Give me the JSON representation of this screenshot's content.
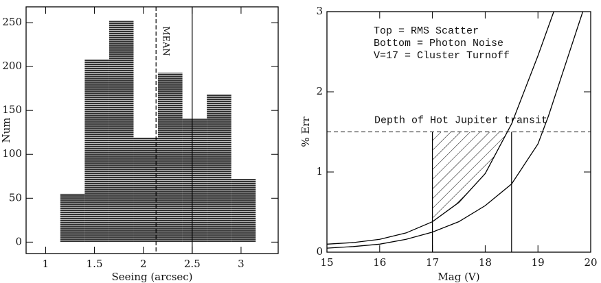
{
  "chart_data": [
    {
      "type": "histogram",
      "xlabel": "Seeing (arcsec)",
      "ylabel": "Num",
      "bins": [
        1.15,
        1.4,
        1.65,
        1.9,
        2.15,
        2.4,
        2.65,
        2.9,
        3.15
      ],
      "values": [
        55,
        208,
        252,
        119,
        193,
        141,
        168,
        72
      ],
      "color": "#444444",
      "xlim": [
        0.8,
        3.38
      ],
      "ylim": [
        -13,
        268
      ],
      "xticks": [
        1,
        1.5,
        2,
        2.5,
        3
      ],
      "yticks": [
        0,
        50,
        100,
        150,
        200,
        250
      ],
      "vlines": [
        {
          "x": 2.13,
          "style": "dashed"
        },
        {
          "x": 2.5,
          "style": "solid"
        }
      ],
      "annotation": "MEAN"
    },
    {
      "type": "line",
      "xlabel": "Mag (V)",
      "ylabel": "% Err",
      "series": [
        {
          "name": "Top = RMS Scatter",
          "color": "#000000",
          "x": [
            15,
            15.5,
            16,
            16.5,
            17,
            17.5,
            18,
            18.5,
            19,
            19.3
          ],
          "values": [
            0.1,
            0.12,
            0.16,
            0.24,
            0.38,
            0.62,
            0.98,
            1.6,
            2.45,
            3.0
          ]
        },
        {
          "name": "Bottom = Photon Noise",
          "color": "#000000",
          "x": [
            15,
            15.5,
            16,
            16.5,
            17,
            17.5,
            18,
            18.5,
            19,
            19.2,
            19.5,
            19.85
          ],
          "values": [
            0.05,
            0.07,
            0.1,
            0.16,
            0.25,
            0.38,
            0.58,
            0.85,
            1.35,
            1.7,
            2.3,
            3.0
          ]
        }
      ],
      "note": "V=17 = Cluster Turnoff",
      "hline": {
        "y": 1.5,
        "label": "Depth of Hot Jupiter transit"
      },
      "vlines": [
        17,
        18.5
      ],
      "xlim": [
        15,
        20
      ],
      "ylim": [
        0,
        3
      ],
      "xticks": [
        15,
        16,
        17,
        18,
        19,
        20
      ],
      "yticks": [
        0,
        1,
        2,
        3
      ]
    }
  ]
}
